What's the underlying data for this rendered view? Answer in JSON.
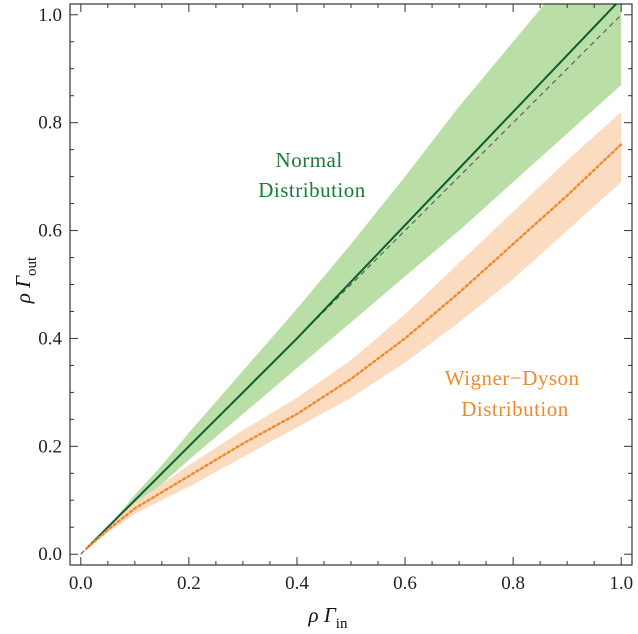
{
  "chart_data": {
    "type": "line",
    "title": "",
    "xlabel": {
      "main": "ρ Γ",
      "sub": "in"
    },
    "ylabel": {
      "main": "ρ Γ",
      "sub": "out"
    },
    "xlim": [
      -0.02,
      1.02
    ],
    "ylim": [
      -0.02,
      1.02
    ],
    "xticks": [
      0.0,
      0.2,
      0.4,
      0.6,
      0.8,
      1.0
    ],
    "xtick_labels": [
      "0.0",
      "0.2",
      "0.4",
      "0.6",
      "0.8",
      "1.0"
    ],
    "yticks": [
      0.0,
      0.2,
      0.4,
      0.6,
      0.8,
      1.0
    ],
    "ytick_labels": [
      "0.0",
      "0.2",
      "0.4",
      "0.6",
      "0.8",
      "1.0"
    ],
    "grid": false,
    "annotations": [
      {
        "lines": [
          "Normal",
          "Distribution"
        ],
        "color": "#1b7a3c"
      },
      {
        "lines": [
          "Wigner−Dyson",
          "Distribution"
        ],
        "color": "#f08a2c"
      }
    ],
    "series": [
      {
        "style": "dashed",
        "color": "#555555",
        "x": [
          0.0,
          1.0
        ],
        "y": [
          0.0,
          1.0
        ]
      },
      {
        "style": "solid",
        "color": "#0f5c2e",
        "band_color": "#b9dfa6",
        "x": [
          0.01,
          0.05,
          0.1,
          0.15,
          0.2,
          0.3,
          0.4,
          0.5,
          0.6,
          0.7,
          0.8,
          0.9,
          1.0
        ],
        "y": [
          0.01,
          0.05,
          0.1,
          0.15,
          0.2,
          0.3,
          0.4,
          0.505,
          0.61,
          0.715,
          0.82,
          0.925,
          1.03
        ],
        "lower": [
          0.01,
          0.045,
          0.09,
          0.13,
          0.175,
          0.26,
          0.345,
          0.43,
          0.515,
          0.6,
          0.69,
          0.78,
          0.87
        ],
        "upper": [
          0.01,
          0.05,
          0.11,
          0.165,
          0.225,
          0.34,
          0.455,
          0.575,
          0.7,
          0.83,
          0.95,
          1.07,
          1.2
        ]
      },
      {
        "style": "dotted",
        "color": "#f08a2c",
        "band_color": "#fcdcc0",
        "x": [
          0.01,
          0.05,
          0.1,
          0.15,
          0.2,
          0.3,
          0.4,
          0.5,
          0.6,
          0.7,
          0.8,
          0.9,
          1.0
        ],
        "y": [
          0.01,
          0.045,
          0.085,
          0.115,
          0.145,
          0.205,
          0.26,
          0.325,
          0.4,
          0.485,
          0.575,
          0.665,
          0.76
        ],
        "lower": [
          0.01,
          0.04,
          0.075,
          0.1,
          0.125,
          0.18,
          0.235,
          0.29,
          0.355,
          0.43,
          0.51,
          0.6,
          0.69
        ],
        "upper": [
          0.01,
          0.05,
          0.095,
          0.13,
          0.165,
          0.23,
          0.29,
          0.36,
          0.445,
          0.54,
          0.635,
          0.73,
          0.82
        ]
      }
    ]
  }
}
